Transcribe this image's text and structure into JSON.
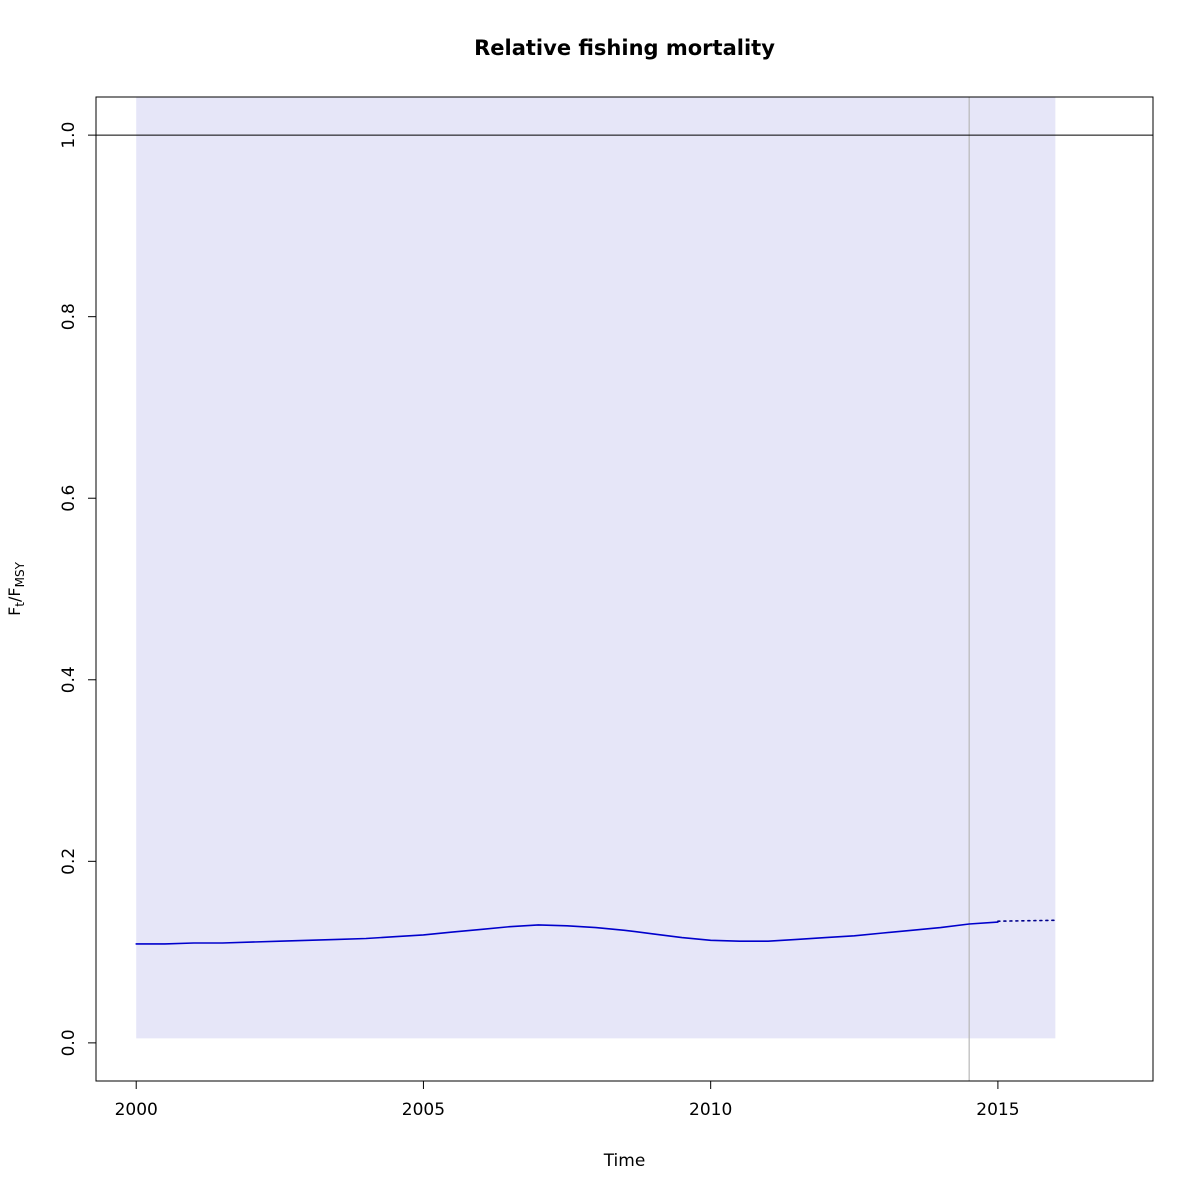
{
  "chart_data": {
    "type": "line",
    "title": "Relative fishing mortality",
    "xlabel": "Time",
    "ylabel": "F[t]/F[MSY]",
    "ylabel_parts": {
      "f1": "F",
      "sub1": "t",
      "slash": "/",
      "f2": "F",
      "sub2": "MSY"
    },
    "xlim": [
      1999.3,
      2017.7
    ],
    "ylim": [
      -0.042,
      1.042
    ],
    "x_tick_values": [
      2000,
      2005,
      2010,
      2015
    ],
    "x_tick_labels": [
      "2000",
      "2005",
      "2010",
      "2015"
    ],
    "y_tick_values": [
      0.0,
      0.2,
      0.4,
      0.6,
      0.8,
      1.0
    ],
    "y_tick_labels": [
      "0.0",
      "0.2",
      "0.4",
      "0.6",
      "0.8",
      "1.0"
    ],
    "grid": false,
    "legend_position": "none",
    "reference_line": {
      "y": 1.0,
      "color": "#000000"
    },
    "vertical_line": {
      "x": 2014.5,
      "color": "#b8b8b8"
    },
    "confidence_region": {
      "x0": 2000,
      "x1": 2016,
      "y0": 0.005,
      "y1": 1.1,
      "color": "#e6e6f8"
    },
    "series": [
      {
        "name": "estimate",
        "style": "solid",
        "color": "#0000cc",
        "x": [
          2000,
          2000.5,
          2001,
          2001.5,
          2002,
          2002.5,
          2003,
          2003.5,
          2004,
          2004.5,
          2005,
          2005.5,
          2006,
          2006.5,
          2007,
          2007.5,
          2008,
          2008.5,
          2009,
          2009.5,
          2010,
          2010.5,
          2011,
          2011.5,
          2012,
          2012.5,
          2013,
          2013.5,
          2014,
          2014.5,
          2015
        ],
        "y": [
          0.109,
          0.109,
          0.11,
          0.11,
          0.111,
          0.112,
          0.113,
          0.114,
          0.115,
          0.117,
          0.119,
          0.122,
          0.125,
          0.128,
          0.13,
          0.129,
          0.127,
          0.124,
          0.12,
          0.116,
          0.113,
          0.112,
          0.112,
          0.114,
          0.116,
          0.118,
          0.121,
          0.124,
          0.127,
          0.131,
          0.133
        ]
      },
      {
        "name": "forecast",
        "style": "dotted",
        "color": "#00008b",
        "x": [
          2015,
          2016
        ],
        "y": [
          0.134,
          0.135
        ]
      }
    ]
  }
}
